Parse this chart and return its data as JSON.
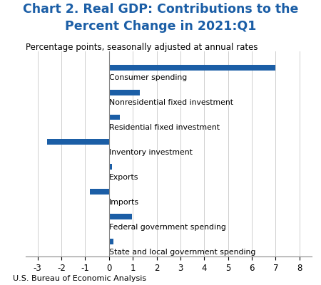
{
  "title_line1": "Chart 2. Real GDP: Contributions to the",
  "title_line2": "Percent Change in 2021:Q1",
  "subtitle": "Percentage points, seasonally adjusted at annual rates",
  "footnote": "U.S. Bureau of Economic Analysis",
  "categories": [
    "Consumer spending",
    "Nonresidential fixed investment",
    "Residential fixed investment",
    "Inventory investment",
    "Exports",
    "Imports",
    "Federal government spending",
    "State and local government spending"
  ],
  "values": [
    7.0,
    1.3,
    0.45,
    -2.6,
    0.12,
    -0.8,
    0.95,
    0.18
  ],
  "bar_color": "#1b5ea6",
  "xlim": [
    -3.5,
    8.5
  ],
  "xticks": [
    -3,
    -2,
    -1,
    0,
    1,
    2,
    3,
    4,
    5,
    6,
    7,
    8
  ],
  "title_color": "#1b5ea6",
  "title_fontsize": 12.5,
  "subtitle_fontsize": 8.5,
  "footnote_fontsize": 8,
  "label_fontsize": 7.8,
  "tick_fontsize": 8.5,
  "bar_height": 0.45
}
